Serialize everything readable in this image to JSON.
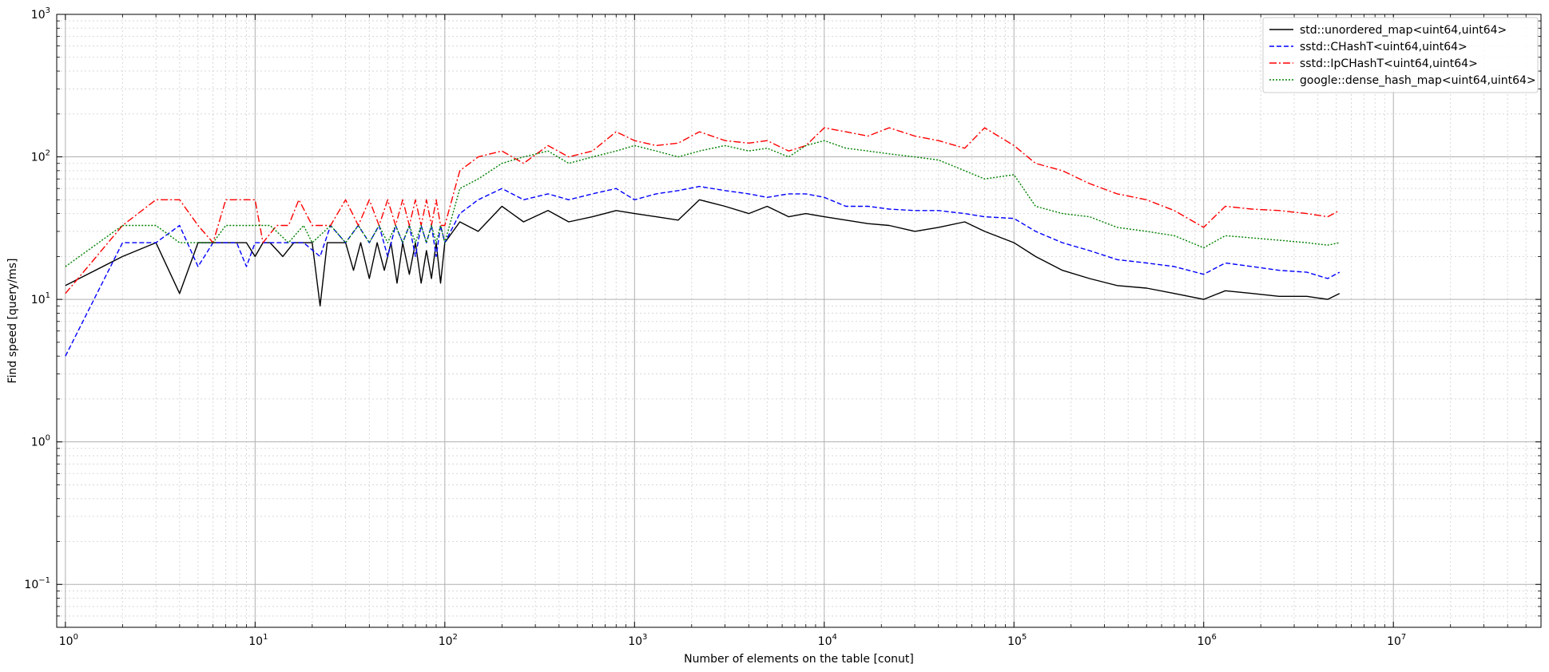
{
  "chart_data": {
    "type": "line",
    "xscale": "log",
    "yscale": "log",
    "xlim": [
      0.9,
      60000000
    ],
    "ylim": [
      0.05,
      1000
    ],
    "xlabel": "Number of elements on the table [conut]",
    "ylabel": "Find speed [query/ms]",
    "xticks": [
      {
        "value": 1,
        "base": "10",
        "exp": "0"
      },
      {
        "value": 10,
        "base": "10",
        "exp": "1"
      },
      {
        "value": 100,
        "base": "10",
        "exp": "2"
      },
      {
        "value": 1000,
        "base": "10",
        "exp": "3"
      },
      {
        "value": 10000,
        "base": "10",
        "exp": "4"
      },
      {
        "value": 100000,
        "base": "10",
        "exp": "5"
      },
      {
        "value": 1000000,
        "base": "10",
        "exp": "6"
      },
      {
        "value": 10000000,
        "base": "10",
        "exp": "7"
      }
    ],
    "yticks": [
      {
        "value": 0.1,
        "base": "10",
        "exp": "−1"
      },
      {
        "value": 1,
        "base": "10",
        "exp": "0"
      },
      {
        "value": 10,
        "base": "10",
        "exp": "1"
      },
      {
        "value": 100,
        "base": "10",
        "exp": "2"
      },
      {
        "value": 1000,
        "base": "10",
        "exp": "3"
      }
    ],
    "grid": {
      "major": true,
      "minor": true
    },
    "legend_position": "top-right",
    "series": [
      {
        "name": "std::unordered_map<uint64,uint64>",
        "color": "#000000",
        "dash": "solid",
        "points": [
          [
            1,
            12.5
          ],
          [
            2,
            20
          ],
          [
            3,
            25
          ],
          [
            4,
            11
          ],
          [
            5,
            25
          ],
          [
            6,
            25
          ],
          [
            7,
            25
          ],
          [
            8,
            25
          ],
          [
            9,
            25
          ],
          [
            10,
            20
          ],
          [
            11,
            25
          ],
          [
            12,
            25
          ],
          [
            14,
            20
          ],
          [
            16,
            25
          ],
          [
            18,
            25
          ],
          [
            20,
            25
          ],
          [
            22,
            9
          ],
          [
            24,
            25
          ],
          [
            27,
            25
          ],
          [
            30,
            25
          ],
          [
            33,
            16
          ],
          [
            36,
            25
          ],
          [
            40,
            14
          ],
          [
            44,
            25
          ],
          [
            48,
            16
          ],
          [
            52,
            25
          ],
          [
            56,
            13
          ],
          [
            60,
            25
          ],
          [
            65,
            15
          ],
          [
            70,
            25
          ],
          [
            75,
            13
          ],
          [
            80,
            22
          ],
          [
            85,
            14
          ],
          [
            90,
            25
          ],
          [
            95,
            13
          ],
          [
            100,
            25
          ],
          [
            120,
            35
          ],
          [
            150,
            30
          ],
          [
            200,
            45
          ],
          [
            260,
            35
          ],
          [
            350,
            42
          ],
          [
            450,
            35
          ],
          [
            600,
            38
          ],
          [
            800,
            42
          ],
          [
            1000,
            40
          ],
          [
            1300,
            38
          ],
          [
            1700,
            36
          ],
          [
            2200,
            50
          ],
          [
            3000,
            45
          ],
          [
            4000,
            40
          ],
          [
            5000,
            45
          ],
          [
            6500,
            38
          ],
          [
            8000,
            40
          ],
          [
            10000,
            38
          ],
          [
            13000,
            36
          ],
          [
            17000,
            34
          ],
          [
            22000,
            33
          ],
          [
            30000,
            30
          ],
          [
            40000,
            32
          ],
          [
            55000,
            35
          ],
          [
            70000,
            30
          ],
          [
            100000,
            25
          ],
          [
            130000,
            20
          ],
          [
            180000,
            16
          ],
          [
            250000,
            14
          ],
          [
            350000,
            12.5
          ],
          [
            500000,
            12
          ],
          [
            700000,
            11
          ],
          [
            1000000,
            10
          ],
          [
            1300000,
            11.5
          ],
          [
            1800000,
            11
          ],
          [
            2500000,
            10.5
          ],
          [
            3500000,
            10.5
          ],
          [
            4500000,
            10
          ],
          [
            5200000,
            11
          ]
        ]
      },
      {
        "name": "sstd::CHashT<uint64,uint64>",
        "color": "#0000ff",
        "dash": "dashed",
        "points": [
          [
            1,
            4
          ],
          [
            2,
            25
          ],
          [
            3,
            25
          ],
          [
            4,
            33
          ],
          [
            5,
            17
          ],
          [
            6,
            25
          ],
          [
            7,
            25
          ],
          [
            8,
            25
          ],
          [
            9,
            17
          ],
          [
            10,
            25
          ],
          [
            12,
            25
          ],
          [
            15,
            25
          ],
          [
            18,
            25
          ],
          [
            22,
            20
          ],
          [
            25,
            33
          ],
          [
            30,
            25
          ],
          [
            35,
            33
          ],
          [
            40,
            25
          ],
          [
            45,
            33
          ],
          [
            50,
            20
          ],
          [
            55,
            33
          ],
          [
            60,
            25
          ],
          [
            65,
            33
          ],
          [
            70,
            20
          ],
          [
            75,
            33
          ],
          [
            80,
            25
          ],
          [
            85,
            33
          ],
          [
            90,
            20
          ],
          [
            95,
            33
          ],
          [
            100,
            25
          ],
          [
            120,
            40
          ],
          [
            150,
            50
          ],
          [
            200,
            60
          ],
          [
            260,
            50
          ],
          [
            350,
            55
          ],
          [
            450,
            50
          ],
          [
            600,
            55
          ],
          [
            800,
            60
          ],
          [
            1000,
            50
          ],
          [
            1300,
            55
          ],
          [
            1700,
            58
          ],
          [
            2200,
            62
          ],
          [
            3000,
            58
          ],
          [
            4000,
            55
          ],
          [
            5000,
            52
          ],
          [
            6500,
            55
          ],
          [
            8000,
            55
          ],
          [
            10000,
            52
          ],
          [
            13000,
            45
          ],
          [
            17000,
            45
          ],
          [
            22000,
            43
          ],
          [
            30000,
            42
          ],
          [
            40000,
            42
          ],
          [
            55000,
            40
          ],
          [
            70000,
            38
          ],
          [
            100000,
            37
          ],
          [
            130000,
            30
          ],
          [
            180000,
            25
          ],
          [
            250000,
            22
          ],
          [
            350000,
            19
          ],
          [
            500000,
            18
          ],
          [
            700000,
            17
          ],
          [
            1000000,
            15
          ],
          [
            1300000,
            18
          ],
          [
            1800000,
            17
          ],
          [
            2500000,
            16
          ],
          [
            3500000,
            15.5
          ],
          [
            4500000,
            14
          ],
          [
            5200000,
            15.5
          ]
        ]
      },
      {
        "name": "sstd::IpCHashT<uint64,uint64>",
        "color": "#ff0000",
        "dash": "dashdot",
        "points": [
          [
            1,
            11
          ],
          [
            2,
            33
          ],
          [
            3,
            50
          ],
          [
            4,
            50
          ],
          [
            5,
            33
          ],
          [
            6,
            25
          ],
          [
            7,
            50
          ],
          [
            8,
            50
          ],
          [
            9,
            50
          ],
          [
            10,
            50
          ],
          [
            11,
            25
          ],
          [
            13,
            33
          ],
          [
            15,
            33
          ],
          [
            17,
            50
          ],
          [
            20,
            33
          ],
          [
            25,
            33
          ],
          [
            30,
            50
          ],
          [
            35,
            33
          ],
          [
            40,
            50
          ],
          [
            45,
            33
          ],
          [
            50,
            50
          ],
          [
            55,
            33
          ],
          [
            60,
            50
          ],
          [
            65,
            33
          ],
          [
            70,
            50
          ],
          [
            75,
            33
          ],
          [
            80,
            50
          ],
          [
            85,
            33
          ],
          [
            90,
            50
          ],
          [
            95,
            33
          ],
          [
            100,
            33
          ],
          [
            120,
            80
          ],
          [
            150,
            100
          ],
          [
            200,
            110
          ],
          [
            260,
            90
          ],
          [
            350,
            120
          ],
          [
            450,
            100
          ],
          [
            600,
            110
          ],
          [
            800,
            150
          ],
          [
            1000,
            130
          ],
          [
            1300,
            120
          ],
          [
            1700,
            125
          ],
          [
            2200,
            150
          ],
          [
            3000,
            130
          ],
          [
            4000,
            125
          ],
          [
            5000,
            130
          ],
          [
            6500,
            110
          ],
          [
            8000,
            120
          ],
          [
            10000,
            160
          ],
          [
            13000,
            150
          ],
          [
            17000,
            140
          ],
          [
            22000,
            160
          ],
          [
            30000,
            140
          ],
          [
            40000,
            130
          ],
          [
            55000,
            115
          ],
          [
            70000,
            160
          ],
          [
            100000,
            120
          ],
          [
            130000,
            90
          ],
          [
            180000,
            80
          ],
          [
            250000,
            65
          ],
          [
            350000,
            55
          ],
          [
            500000,
            50
          ],
          [
            700000,
            42
          ],
          [
            1000000,
            32
          ],
          [
            1300000,
            45
          ],
          [
            1800000,
            43
          ],
          [
            2500000,
            42
          ],
          [
            3500000,
            40
          ],
          [
            4500000,
            38
          ],
          [
            5200000,
            42
          ]
        ]
      },
      {
        "name": "google::dense_hash_map<uint64,uint64>",
        "color": "#008000",
        "dash": "dotted",
        "points": [
          [
            1,
            17
          ],
          [
            2,
            33
          ],
          [
            3,
            33
          ],
          [
            4,
            25
          ],
          [
            5,
            25
          ],
          [
            6,
            25
          ],
          [
            7,
            33
          ],
          [
            8,
            33
          ],
          [
            9,
            33
          ],
          [
            10,
            33
          ],
          [
            12,
            33
          ],
          [
            15,
            25
          ],
          [
            18,
            33
          ],
          [
            20,
            25
          ],
          [
            25,
            33
          ],
          [
            30,
            25
          ],
          [
            35,
            33
          ],
          [
            40,
            25
          ],
          [
            45,
            33
          ],
          [
            50,
            25
          ],
          [
            55,
            33
          ],
          [
            60,
            25
          ],
          [
            65,
            33
          ],
          [
            70,
            25
          ],
          [
            75,
            33
          ],
          [
            80,
            25
          ],
          [
            85,
            33
          ],
          [
            90,
            25
          ],
          [
            95,
            33
          ],
          [
            100,
            25
          ],
          [
            120,
            60
          ],
          [
            150,
            70
          ],
          [
            200,
            90
          ],
          [
            260,
            100
          ],
          [
            350,
            110
          ],
          [
            450,
            90
          ],
          [
            600,
            100
          ],
          [
            800,
            110
          ],
          [
            1000,
            120
          ],
          [
            1300,
            110
          ],
          [
            1700,
            100
          ],
          [
            2200,
            110
          ],
          [
            3000,
            120
          ],
          [
            4000,
            110
          ],
          [
            5000,
            115
          ],
          [
            6500,
            100
          ],
          [
            8000,
            120
          ],
          [
            10000,
            130
          ],
          [
            13000,
            115
          ],
          [
            17000,
            110
          ],
          [
            22000,
            105
          ],
          [
            30000,
            100
          ],
          [
            40000,
            95
          ],
          [
            55000,
            80
          ],
          [
            70000,
            70
          ],
          [
            100000,
            75
          ],
          [
            130000,
            45
          ],
          [
            180000,
            40
          ],
          [
            250000,
            38
          ],
          [
            350000,
            32
          ],
          [
            500000,
            30
          ],
          [
            700000,
            28
          ],
          [
            1000000,
            23
          ],
          [
            1300000,
            28
          ],
          [
            1800000,
            27
          ],
          [
            2500000,
            26
          ],
          [
            3500000,
            25
          ],
          [
            4500000,
            24
          ],
          [
            5200000,
            25
          ]
        ]
      }
    ]
  }
}
